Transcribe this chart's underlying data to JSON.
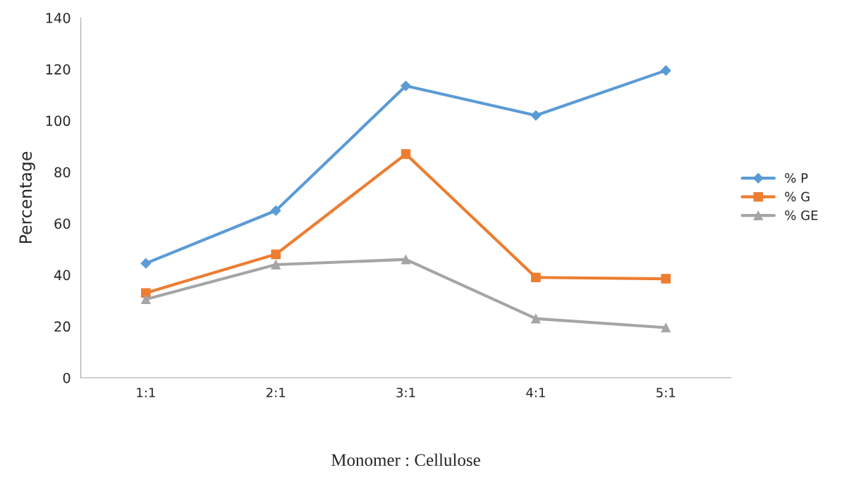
{
  "chart_data": {
    "type": "line",
    "xlabel": "Monomer : Cellulose",
    "ylabel": "Percentage",
    "categories": [
      "1:1",
      "2:1",
      "3:1",
      "4:1",
      "5:1"
    ],
    "series": [
      {
        "name": "% P",
        "color": "#5b9bd5",
        "marker": "diamond",
        "values": [
          44.5,
          65,
          113.5,
          102,
          119.5
        ]
      },
      {
        "name": "% G",
        "color": "#ed7d31",
        "marker": "square",
        "values": [
          33,
          48,
          87,
          39,
          38.5
        ]
      },
      {
        "name": "% GE",
        "color": "#a5a5a5",
        "marker": "triangle",
        "values": [
          30.5,
          44,
          46,
          23,
          19.5
        ]
      }
    ],
    "ylim": [
      0,
      140
    ],
    "yticks": [
      0,
      20,
      40,
      60,
      80,
      100,
      120,
      140
    ],
    "grid": false,
    "legend": "right"
  }
}
